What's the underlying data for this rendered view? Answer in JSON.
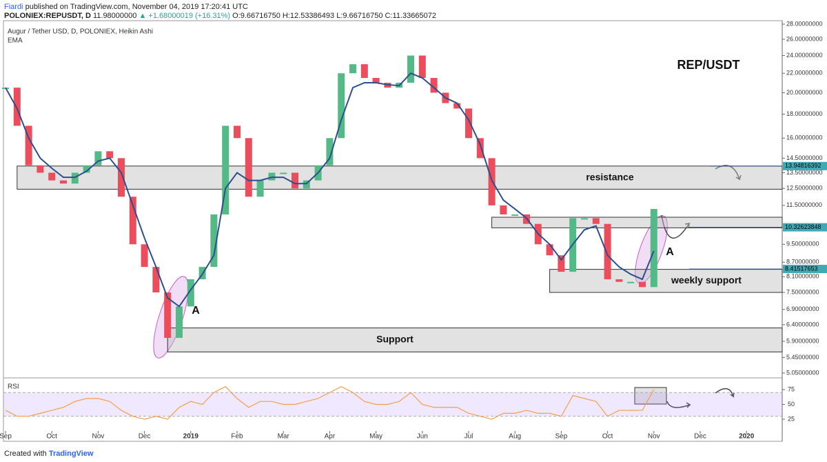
{
  "header": {
    "author": "Fiardi",
    "published": "published on TradingView.com, November 04, 2019 17:20:41 UTC",
    "symbol": "POLONIEX:REPUSDT, D",
    "last": "11.98000000",
    "change": "▲ +1.68000019 (+16.31%)",
    "ohlc": "O:9.66716750 H:12.53386493 L:9.66716750 C:11.33665072"
  },
  "footer": {
    "created": "Created with",
    "brand": "TradingView"
  },
  "chart_data": {
    "type": "candlestick",
    "title": "Augur / Tether USD, D, POLONIEX, Heikin Ashi",
    "subtitle": "EMA",
    "log_scale": true,
    "up_color": "#53b987",
    "down_color": "#eb4d5c",
    "categories": [
      "Sep",
      null,
      null,
      null,
      "Oct",
      null,
      null,
      null,
      "Nov",
      null,
      null,
      null,
      "Dec",
      null,
      null,
      null,
      "2019",
      null,
      null,
      null,
      "Feb",
      null,
      null,
      null,
      "Mar",
      null,
      null,
      null,
      "Apr",
      null,
      null,
      null,
      "May",
      null,
      null,
      null,
      "Jun",
      null,
      null,
      null,
      "Jul",
      null,
      null,
      null,
      "Aug",
      null,
      null,
      null,
      "Sep",
      null,
      null,
      null,
      "Oct",
      null,
      null,
      null,
      "Nov",
      null,
      null,
      null,
      "Dec",
      null,
      null,
      null,
      "2020",
      null,
      null,
      null
    ],
    "series": [
      {
        "name": "REPUSDT",
        "values": [
          20.5,
          17,
          14,
          13.5,
          13,
          12.8,
          13.5,
          14,
          15,
          14.5,
          12,
          9.5,
          8.5,
          7.5,
          6.0,
          7.0,
          8.0,
          8.5,
          11,
          17,
          16,
          12,
          13,
          13.5,
          13.5,
          12.5,
          13,
          14,
          16,
          22,
          23,
          21.5,
          21,
          20.5,
          21,
          24,
          21.5,
          20,
          19,
          18.5,
          16,
          14.5,
          11.5,
          11,
          11,
          10.5,
          9.5,
          9,
          8.3,
          10.8,
          10.8,
          10.5,
          8.0,
          7.9,
          7.9,
          7.7,
          11.3,
          null,
          null,
          null,
          null,
          null,
          null,
          null,
          null,
          null,
          null,
          null
        ]
      },
      {
        "name": "EMA",
        "color": "#2c4f8c",
        "values": [
          20.5,
          18.5,
          16,
          14.5,
          13.8,
          13.2,
          13.2,
          13.6,
          14.3,
          14.5,
          13.5,
          11.5,
          9.8,
          8.5,
          7.3,
          7.0,
          7.6,
          8.2,
          9.0,
          12.5,
          13.5,
          13.0,
          13.0,
          13.2,
          13.2,
          12.8,
          12.8,
          13.5,
          14.5,
          17.5,
          20.5,
          21,
          21,
          20.8,
          20.7,
          22,
          21.5,
          20.5,
          19.5,
          19,
          17.5,
          15.5,
          13,
          11.8,
          11.3,
          10.8,
          10.0,
          9.5,
          8.8,
          9.5,
          10.2,
          10.4,
          9.0,
          8.5,
          8.2,
          8.0,
          9.2,
          null,
          null,
          null,
          null,
          null,
          null,
          null,
          null,
          null,
          null,
          null
        ]
      }
    ],
    "ylim": [
      4.93,
      28.48
    ],
    "yticks": [
      {
        "value": 28,
        "label": "28.00000000"
      },
      {
        "value": 26,
        "label": "26.00000000"
      },
      {
        "value": 24,
        "label": "24.00000000"
      },
      {
        "value": 22,
        "label": "22.00000000"
      },
      {
        "value": 20,
        "label": "20.00000000"
      },
      {
        "value": 18,
        "label": "18.00000000"
      },
      {
        "value": 16,
        "label": "16.00000000"
      },
      {
        "value": 14.5,
        "label": "14.50000000"
      },
      {
        "value": 13.5,
        "label": "13.50000000"
      },
      {
        "value": 12.5,
        "label": "12.50000000"
      },
      {
        "value": 11.5,
        "label": "11.50000000"
      },
      {
        "value": 9.5,
        "label": "9.50000000"
      },
      {
        "value": 8.7,
        "label": "8.70000000"
      },
      {
        "value": 8.1,
        "label": "8.10000000"
      },
      {
        "value": 7.5,
        "label": "7.50000000"
      },
      {
        "value": 6.9,
        "label": "6.90000000"
      },
      {
        "value": 6.4,
        "label": "6.40000000"
      },
      {
        "value": 5.9,
        "label": "5.90000000"
      },
      {
        "value": 5.45,
        "label": "5.45000000"
      },
      {
        "value": 5.05,
        "label": "5.05000000"
      }
    ],
    "price_lines": [
      {
        "value": 13.94816392,
        "label": "13.94816392"
      },
      {
        "value": 10.32623848,
        "label": "10.32623848"
      },
      {
        "value": 8.41517653,
        "label": "8.41517653"
      }
    ],
    "zones": [
      {
        "label": "resistance",
        "start": 1,
        "low": 12.45,
        "high": 13.95
      },
      {
        "label": null,
        "start": 42,
        "low": 10.3,
        "high": 10.85
      },
      {
        "label": "weekly support",
        "start": 47,
        "low": 7.5,
        "high": 8.4
      },
      {
        "label": "Support",
        "start": 14,
        "low": 5.6,
        "high": 6.3
      }
    ],
    "annotations": [
      "REP/USDT",
      "A",
      "A"
    ],
    "rsi": {
      "name": "RSI",
      "color": "#f0a04b",
      "values": [
        40,
        30,
        30,
        35,
        40,
        45,
        55,
        60,
        60,
        55,
        40,
        30,
        25,
        30,
        25,
        45,
        55,
        50,
        70,
        80,
        60,
        45,
        55,
        55,
        50,
        50,
        55,
        60,
        70,
        80,
        70,
        55,
        50,
        50,
        55,
        70,
        50,
        45,
        45,
        45,
        35,
        30,
        25,
        35,
        35,
        40,
        35,
        35,
        30,
        65,
        60,
        55,
        30,
        40,
        40,
        40,
        75,
        null,
        null,
        null,
        null,
        null,
        null,
        null,
        null,
        null,
        null,
        null
      ],
      "ylim": [
        5.2,
        92.4
      ],
      "yticks": [
        25,
        50,
        75
      ],
      "band": [
        30,
        70
      ]
    }
  }
}
